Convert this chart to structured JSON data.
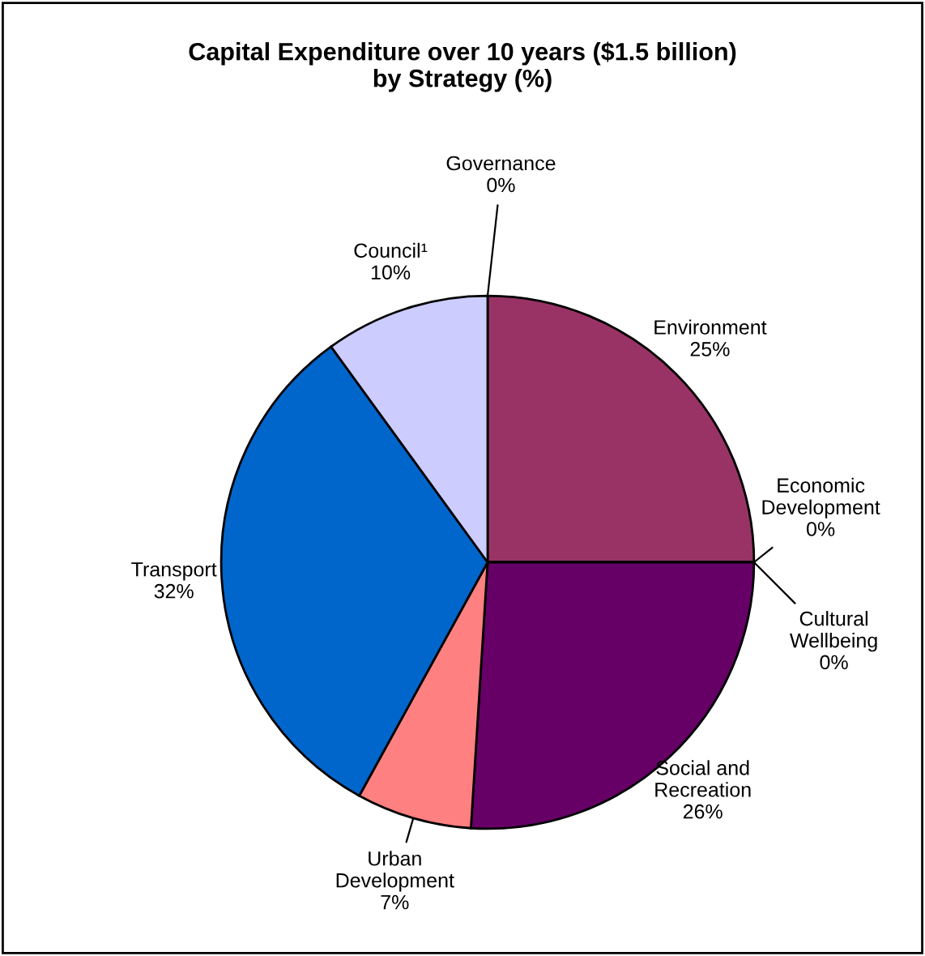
{
  "chart_data": {
    "type": "pie",
    "title": "Capital Expenditure over 10 years ($1.5 billion)\nby Strategy (%)",
    "categories": [
      "Governance",
      "Environment",
      "Economic\nDevelopment",
      "Cultural\nWellbeing",
      "Social and\nRecreation",
      "Urban\nDevelopment",
      "Transport",
      "Council¹"
    ],
    "values": [
      0,
      25,
      0,
      0,
      26,
      7,
      32,
      10
    ],
    "colors": [
      "#ffffff",
      "#993366",
      "#ffffcc",
      "#ccffff",
      "#660066",
      "#ff8080",
      "#0066cc",
      "#ccccff"
    ],
    "value_labels": [
      "0%",
      "25%",
      "0%",
      "0%",
      "26%",
      "7%",
      "32%",
      "10%"
    ]
  }
}
